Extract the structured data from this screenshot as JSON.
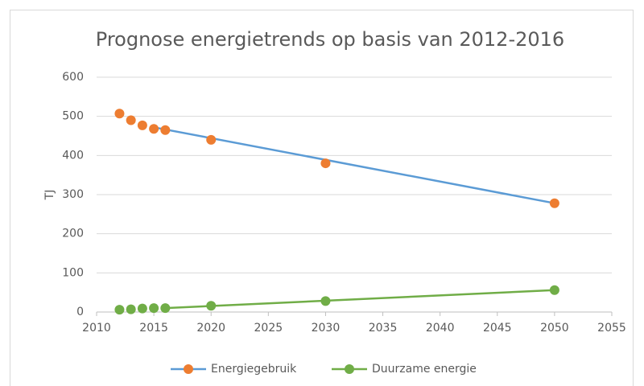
{
  "chart_data": {
    "type": "scatter",
    "title": "Prognose energietrends op basis van 2012-2016",
    "y_label": "TJ",
    "x": [
      2012,
      2013,
      2014,
      2015,
      2016,
      2020,
      2030,
      2050
    ],
    "series": [
      {
        "name": "Energiegebruik",
        "color": "#ed7d31",
        "line_color": "#5b9bd5",
        "values": [
          507,
          490,
          477,
          468,
          465,
          440,
          380,
          278
        ],
        "trendline": {
          "x": [
            2015,
            2050
          ],
          "values": [
            472,
            278
          ]
        }
      },
      {
        "name": "Duurzame energie",
        "color": "#70ad47",
        "line_color": "#70ad47",
        "values": [
          6,
          7,
          9,
          10,
          10,
          16,
          28,
          56
        ],
        "trendline": {
          "x": [
            2016,
            2050
          ],
          "values": [
            10,
            56
          ]
        }
      }
    ],
    "xlim": [
      2010,
      2055
    ],
    "xticks": [
      2010,
      2015,
      2020,
      2025,
      2030,
      2035,
      2040,
      2045,
      2050,
      2055
    ],
    "ylim": [
      0,
      600
    ],
    "yticks": [
      0,
      100,
      200,
      300,
      400,
      500,
      600
    ],
    "grid": true,
    "legend": "bottom"
  }
}
